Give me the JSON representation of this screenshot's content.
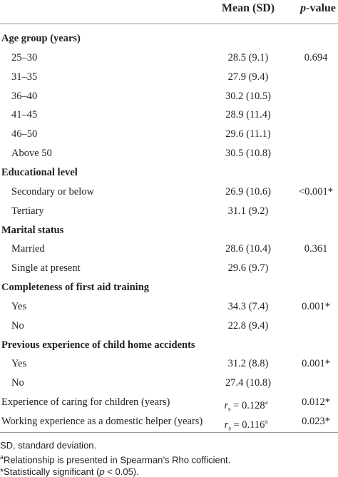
{
  "table": {
    "header": {
      "mean": "Mean (SD)",
      "p": {
        "italic": "p",
        "rest": "-value"
      }
    },
    "groups": [
      {
        "title": "Age group (years)",
        "rows": [
          {
            "label": "25–30",
            "mean": "28.5 (9.1)",
            "p": "0.694"
          },
          {
            "label": "31–35",
            "mean": "27.9 (9.4)"
          },
          {
            "label": "36–40",
            "mean": "30.2 (10.5)"
          },
          {
            "label": "41–45",
            "mean": "28.9 (11.4)"
          },
          {
            "label": "46–50",
            "mean": "29.6 (11.1)"
          },
          {
            "label": "Above 50",
            "mean": "30.5 (10.8)"
          }
        ]
      },
      {
        "title": "Educational level",
        "rows": [
          {
            "label": "Secondary or below",
            "mean": "26.9 (10.6)",
            "p": "<0.001*"
          },
          {
            "label": "Tertiary",
            "mean": "31.1 (9.2)"
          }
        ]
      },
      {
        "title": "Marital status",
        "rows": [
          {
            "label": "Married",
            "mean": "28.6 (10.4)",
            "p": "0.361"
          },
          {
            "label": "Single at present",
            "mean": "29.6 (9.7)"
          }
        ]
      },
      {
        "title": "Completeness of first aid training",
        "rows": [
          {
            "label": "Yes",
            "mean": "34.3 (7.4)",
            "p": "0.001*"
          },
          {
            "label": "No",
            "mean": "22.8 (9.4)"
          }
        ]
      },
      {
        "title": "Previous experience of child home accidents",
        "rows": [
          {
            "label": "Yes",
            "mean": "31.2 (8.8)",
            "p": "0.001*"
          },
          {
            "label": "No",
            "mean": "27.4 (10.8)"
          }
        ]
      }
    ],
    "rows": [
      {
        "label": "Experience of caring for children (years)",
        "mean": {
          "r": "r",
          "sub": "s",
          "eq": " = 0.128",
          "sup": "a"
        },
        "p": "0.012*"
      },
      {
        "label": "Working experience as a domestic helper (years)",
        "mean": {
          "r": "r",
          "sub": "s",
          "eq": " = 0.116",
          "sup": "a"
        },
        "p": "0.023*"
      }
    ]
  },
  "footnotes": {
    "abbr": "SD, standard deviation.",
    "a": {
      "mark": "a",
      "text": "Relationship is presented in Spearman’s Rho cofficient."
    },
    "star": {
      "before": "*Statistically significant (",
      "italic": "p",
      "after": " < 0.05)."
    }
  }
}
